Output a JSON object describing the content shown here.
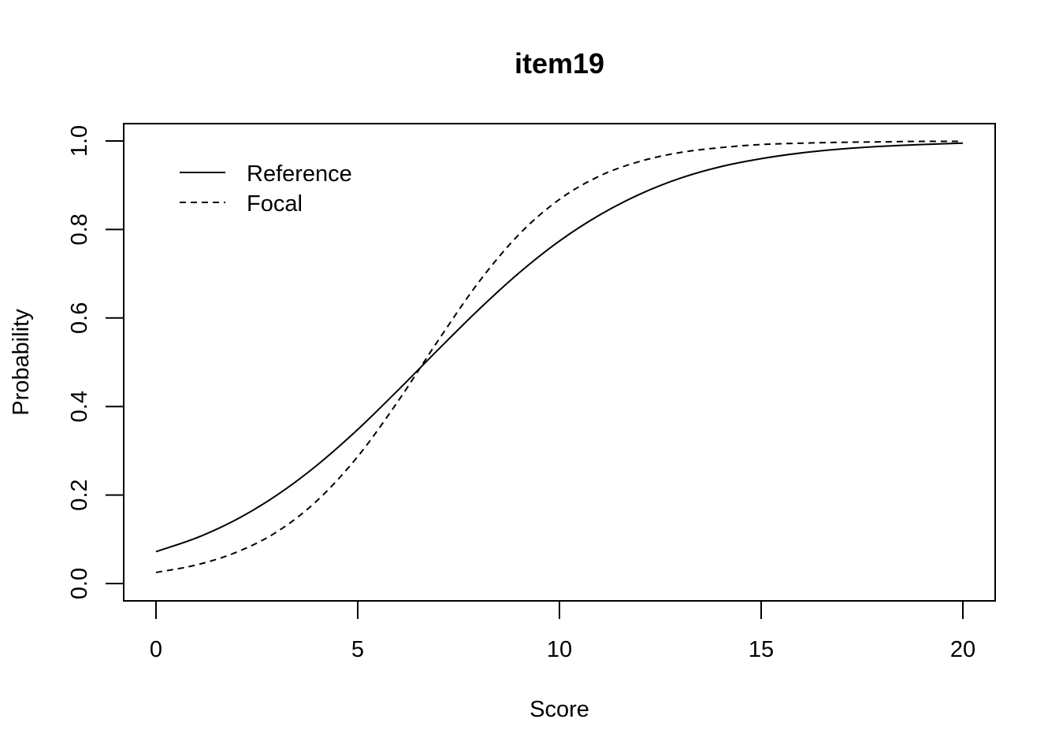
{
  "chart_data": {
    "type": "line",
    "title": "item19",
    "xlabel": "Score",
    "ylabel": "Probability",
    "xlim": [
      0,
      20
    ],
    "ylim": [
      0,
      1
    ],
    "x_ticks": [
      "0",
      "5",
      "10",
      "15",
      "20"
    ],
    "y_ticks": [
      "0.0",
      "0.2",
      "0.4",
      "0.6",
      "0.8",
      "1.0"
    ],
    "grid": false,
    "legend_position": "top-left",
    "x": [
      0,
      1,
      2,
      3,
      4,
      5,
      6,
      7,
      8,
      9,
      10,
      11,
      12,
      13,
      14,
      15,
      16,
      17,
      18,
      19,
      20
    ],
    "series": [
      {
        "name": "Reference",
        "line_style": "solid",
        "color": "#000000",
        "values": [
          0.072,
          0.103,
          0.145,
          0.2,
          0.268,
          0.348,
          0.437,
          0.529,
          0.619,
          0.702,
          0.774,
          0.833,
          0.88,
          0.916,
          0.942,
          0.96,
          0.973,
          0.982,
          0.988,
          0.992,
          0.995
        ]
      },
      {
        "name": "Focal",
        "line_style": "dashed",
        "color": "#000000",
        "values": [
          0.025,
          0.042,
          0.071,
          0.117,
          0.188,
          0.287,
          0.412,
          0.55,
          0.681,
          0.789,
          0.868,
          0.921,
          0.954,
          0.974,
          0.985,
          0.992,
          0.995,
          0.997,
          0.998,
          0.999,
          0.999
        ]
      }
    ]
  }
}
